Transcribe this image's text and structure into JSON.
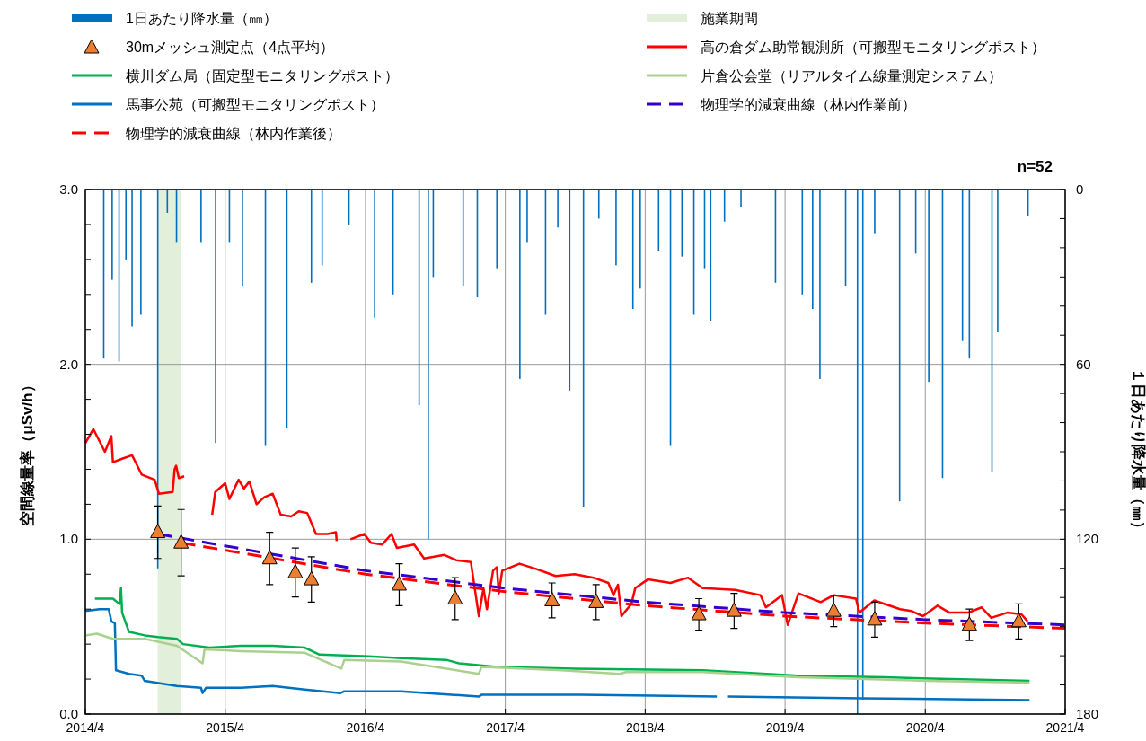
{
  "chart_data": {
    "type": "line",
    "xlim": [
      "2014-04",
      "2021-04"
    ],
    "xticks": [
      {
        "value": "2014-04",
        "label": "2014/4"
      },
      {
        "value": "2015-04",
        "label": "2015/4"
      },
      {
        "value": "2016-04",
        "label": "2016/4"
      },
      {
        "value": "2017-04",
        "label": "2017/4"
      },
      {
        "value": "2018-04",
        "label": "2018/4"
      },
      {
        "value": "2019-04",
        "label": "2019/4"
      },
      {
        "value": "2020-04",
        "label": "2020/4"
      },
      {
        "value": "2021-04",
        "label": "2021/4"
      }
    ],
    "ylim": [
      0,
      3
    ],
    "yticks": [
      {
        "value": 0,
        "label": "0.0"
      },
      {
        "value": 0.2,
        "label": null
      },
      {
        "value": 0.4,
        "label": null
      },
      {
        "value": 0.6,
        "label": null
      },
      {
        "value": 0.8,
        "label": null
      },
      {
        "value": 1,
        "label": "1.0"
      },
      {
        "value": 1.2,
        "label": null
      },
      {
        "value": 1.4,
        "label": null
      },
      {
        "value": 1.6,
        "label": null
      },
      {
        "value": 1.8,
        "label": null
      },
      {
        "value": 2,
        "label": "2.0"
      },
      {
        "value": 2.2,
        "label": null
      },
      {
        "value": 2.4,
        "label": null
      },
      {
        "value": 2.6,
        "label": null
      },
      {
        "value": 2.8,
        "label": null
      },
      {
        "value": 3,
        "label": "3.0"
      }
    ],
    "y2lim": [
      180,
      0
    ],
    "y2ticks": [
      0,
      {
        "value": 10,
        "label": null
      },
      {
        "value": 20,
        "label": null
      },
      {
        "value": 30,
        "label": null
      },
      {
        "value": 40,
        "label": null
      },
      {
        "value": 50,
        "label": null
      },
      60,
      {
        "value": 70,
        "label": null
      },
      {
        "value": 80,
        "label": null
      },
      {
        "value": 90,
        "label": null
      },
      {
        "value": 100,
        "label": null
      },
      {
        "value": 110,
        "label": null
      },
      120,
      {
        "value": 130,
        "label": null
      },
      {
        "value": 140,
        "label": null
      },
      {
        "value": 150,
        "label": null
      },
      {
        "value": 160,
        "label": null
      },
      {
        "value": 170,
        "label": null
      },
      180
    ],
    "ylabel": "空間線量率（μSv/h）",
    "y2label": "１日あたり降水量（㎜）",
    "grid": true,
    "legend": "top",
    "annotations": [
      "n=52"
    ],
    "bands": [
      {
        "axis": "x",
        "from": "2014-10-07",
        "to": "2014-12-07",
        "label": "施業期間",
        "color": "#e2efda"
      }
    ],
    "series": [
      {
        "name": "1日あたり降水量（㎜）",
        "type": "bar",
        "axis": "y2",
        "color": "#0070c0",
        "x": [
          "2014-05-19",
          "2014-06-10",
          "2014-06-28",
          "2014-07-16",
          "2014-08-01",
          "2014-08-24",
          "2014-10-07",
          "2014-11-01",
          "2014-11-25",
          "2015-01-28",
          "2015-03-07",
          "2015-04-12",
          "2015-05-16",
          "2015-07-15",
          "2015-09-09",
          "2015-11-12",
          "2015-12-10",
          "2016-02-18",
          "2016-04-25",
          "2016-06-12",
          "2016-08-19",
          "2016-09-12",
          "2016-09-25",
          "2016-12-12",
          "2017-01-18",
          "2017-03-10",
          "2017-05-09",
          "2017-05-28",
          "2017-07-15",
          "2017-08-16",
          "2017-09-16",
          "2017-10-22",
          "2017-12-01",
          "2018-01-15",
          "2018-02-28",
          "2018-03-19",
          "2018-05-06",
          "2018-06-06",
          "2018-07-06",
          "2018-08-06",
          "2018-09-03",
          "2018-09-19",
          "2018-10-25",
          "2018-12-07",
          "2019-03-07",
          "2019-05-16",
          "2019-06-12",
          "2019-07-01",
          "2019-09-06",
          "2019-10-07",
          "2019-10-21",
          "2019-11-21",
          "2020-01-25",
          "2020-03-07",
          "2020-04-10",
          "2020-05-16",
          "2020-07-07",
          "2020-07-25",
          "2020-09-22",
          "2020-10-07",
          "2020-12-25"
        ],
        "values": [
          58,
          31,
          59,
          24,
          47,
          43,
          130,
          8,
          18,
          18,
          87,
          18,
          33,
          88,
          82,
          32,
          26,
          12,
          44,
          36,
          74,
          120,
          30,
          33,
          37,
          27,
          65,
          18,
          43,
          13,
          69,
          109,
          10,
          26,
          41,
          34,
          21,
          88,
          23,
          43,
          27,
          45,
          11,
          6,
          32,
          36,
          41,
          65,
          33,
          180,
          175,
          15,
          107,
          22,
          66,
          99,
          52,
          58,
          97,
          49,
          9
        ]
      },
      {
        "name": "30mメッシュ測定点（4点平均）",
        "type": "scatter",
        "marker": "triangle",
        "color": "#ed7d31",
        "x": [
          "2014-10-07",
          "2014-12-07",
          "2015-07-26",
          "2015-10-01",
          "2015-11-12",
          "2016-06-28",
          "2016-11-21",
          "2017-08-01",
          "2017-11-24",
          "2018-08-19",
          "2018-11-19",
          "2019-08-06",
          "2019-11-21",
          "2020-07-25",
          "2020-12-01"
        ],
        "values": [
          1.04,
          0.98,
          0.89,
          0.81,
          0.77,
          0.74,
          0.66,
          0.65,
          0.64,
          0.57,
          0.59,
          0.59,
          0.54,
          0.51,
          0.53
        ],
        "errors": [
          0.15,
          0.19,
          0.15,
          0.14,
          0.13,
          0.12,
          0.12,
          0.1,
          0.1,
          0.09,
          0.1,
          0.09,
          0.1,
          0.09,
          0.1
        ]
      },
      {
        "name": "横川ダム局（固定型モニタリングポスト）",
        "color": "#00b050",
        "x": [
          "2014-04-26",
          "2014-06-12",
          "2014-06-29",
          "2014-07-03",
          "2014-07-06",
          "2014-07-24",
          "2014-09-03",
          "2014-10-08",
          "2014-11-26",
          "2014-12-12",
          "2015-02-19",
          "2015-05-12",
          "2015-08-03",
          "2015-10-26",
          "2015-12-03",
          "2016-04-10",
          "2016-07-03",
          "2016-10-29",
          "2016-12-01",
          "2017-03-10",
          "2017-09-29",
          "2018-08-29",
          "2019-05-06",
          "2019-12-15",
          "2020-12-29"
        ],
        "values": [
          0.66,
          0.66,
          0.63,
          0.72,
          0.58,
          0.47,
          0.45,
          0.44,
          0.43,
          0.4,
          0.38,
          0.39,
          0.39,
          0.38,
          0.34,
          0.33,
          0.32,
          0.31,
          0.29,
          0.27,
          0.26,
          0.25,
          0.22,
          0.21,
          0.19
        ]
      },
      {
        "name": "馬事公苑（可搬型モニタリングポスト）",
        "color": "#0070c0",
        "x": [
          "2014-04-01",
          "2014-05-08",
          "2014-06-01",
          "2014-06-08",
          "2014-06-17",
          "2014-06-20",
          "2014-07-24",
          "2014-08-26",
          "2014-09-03",
          "2014-11-26",
          "2015-01-28",
          "2015-02-01",
          "2015-02-10",
          "2015-05-12",
          "2015-08-03",
          "2015-10-26",
          "2016-01-27",
          "2016-02-06",
          "2016-07-03",
          "2017-01-22",
          "2017-01-29",
          "2017-10-15",
          "2018-10-05",
          "2018-10-12",
          "2018-11-03",
          "2019-10-19",
          "2020-12-29"
        ],
        "values": [
          0.59,
          0.6,
          0.6,
          0.53,
          0.52,
          0.25,
          0.23,
          0.22,
          0.19,
          0.16,
          0.15,
          0.12,
          0.15,
          0.15,
          0.16,
          0.14,
          0.12,
          0.13,
          0.13,
          0.1,
          0.11,
          0.11,
          0.1,
          null,
          0.1,
          0.09,
          0.08
        ]
      },
      {
        "name": "物理学的減衰曲線（林内作業後）",
        "line_style": "dashed",
        "color": "#ff0000",
        "x": [
          "2014-12-07",
          "2016-04",
          "2017-04",
          "2018-04",
          "2019-04",
          "2020-04",
          "2021-04"
        ],
        "values": [
          0.98,
          0.8,
          0.7,
          0.62,
          0.56,
          0.52,
          0.49
        ]
      },
      {
        "name": "高の倉ダム助常観測所（可搬型モニタリングポスト）",
        "color": "#ff0000",
        "x": [
          "2014-04-01",
          "2014-04-22",
          "2014-05-22",
          "2014-06-08",
          "2014-06-12",
          "2014-07-06",
          "2014-08-01",
          "2014-08-26",
          "2014-09-29",
          "2014-10-10",
          "2014-11-15",
          "2014-11-20",
          "2014-11-24",
          "2014-12-01",
          "2014-12-15",
          "2015-01-15",
          "2015-02-26",
          "2015-03-06",
          "2015-04-01",
          "2015-04-12",
          "2015-05-06",
          "2015-05-20",
          "2015-06-03",
          "2015-06-22",
          "2015-07-12",
          "2015-08-03",
          "2015-08-24",
          "2015-09-20",
          "2015-10-10",
          "2015-11-01",
          "2015-11-24",
          "2015-12-24",
          "2016-01-15",
          "2016-01-17",
          "2016-02-01",
          "2016-02-22",
          "2016-03-29",
          "2016-04-15",
          "2016-05-15",
          "2016-06-08",
          "2016-06-22",
          "2016-08-06",
          "2016-09-01",
          "2016-10-24",
          "2016-11-24",
          "2017-01-01",
          "2017-01-22",
          "2017-02-03",
          "2017-02-12",
          "2017-02-28",
          "2017-03-10",
          "2017-03-15",
          "2017-03-24",
          "2017-05-08",
          "2017-06-20",
          "2017-08-10",
          "2017-09-29",
          "2017-11-17",
          "2017-12-26",
          "2018-01-08",
          "2018-01-20",
          "2018-01-29",
          "2018-02-24",
          "2018-03-06",
          "2018-04-08",
          "2018-06-06",
          "2018-07-22",
          "2018-08-29",
          "2018-11-22",
          "2019-01-27",
          "2019-02-10",
          "2019-03-24",
          "2019-04-08",
          "2019-05-06",
          "2019-07-03",
          "2019-08-06",
          "2019-10-03",
          "2019-10-12",
          "2019-11-20",
          "2020-01-26",
          "2020-02-24",
          "2020-03-26",
          "2020-05-03",
          "2020-06-03",
          "2020-07-22",
          "2020-08-26",
          "2020-09-20",
          "2020-11-01",
          "2020-12-08",
          "2020-12-24"
        ],
        "values": [
          1.55,
          1.63,
          1.5,
          1.59,
          1.44,
          1.46,
          1.48,
          1.37,
          1.34,
          1.26,
          1.27,
          1.4,
          1.42,
          1.35,
          1.36,
          null,
          1.14,
          1.27,
          1.32,
          1.23,
          1.34,
          1.29,
          1.33,
          1.2,
          1.24,
          1.26,
          1.14,
          1.13,
          1.16,
          1.15,
          1.03,
          1.03,
          1.04,
          0.99,
          null,
          1.0,
          1.03,
          0.98,
          0.97,
          1.03,
          0.95,
          0.97,
          0.89,
          0.91,
          0.88,
          0.87,
          0.56,
          0.72,
          0.6,
          0.82,
          0.84,
          0.69,
          0.82,
          0.86,
          0.83,
          0.79,
          0.8,
          0.78,
          0.75,
          0.68,
          0.74,
          0.56,
          0.63,
          0.72,
          0.77,
          0.75,
          0.78,
          0.72,
          0.71,
          0.68,
          0.61,
          0.68,
          0.51,
          0.69,
          0.64,
          0.68,
          0.66,
          0.58,
          0.65,
          0.6,
          0.59,
          0.56,
          0.62,
          0.58,
          0.58,
          0.61,
          0.55,
          0.58,
          0.57,
          0.53
        ]
      },
      {
        "name": "片倉公会堂（リアルタイム線量測定システム）",
        "color": "#a9d18e",
        "x": [
          "2014-04-01",
          "2014-05-01",
          "2014-06-12",
          "2014-09-03",
          "2014-11-26",
          "2015-02-01",
          "2015-02-06",
          "2015-05-12",
          "2015-10-26",
          "2016-01-29",
          "2016-02-06",
          "2016-07-03",
          "2017-01-22",
          "2017-01-29",
          "2017-08-26",
          "2018-01-24",
          "2018-02-10",
          "2018-08-29",
          "2019-05-06",
          "2020-04-06",
          "2020-12-29"
        ],
        "values": [
          0.45,
          0.46,
          0.43,
          0.43,
          0.39,
          0.29,
          0.37,
          0.36,
          0.35,
          0.26,
          0.31,
          0.3,
          0.23,
          0.27,
          0.25,
          0.23,
          0.24,
          0.24,
          0.21,
          0.19,
          0.18
        ]
      },
      {
        "name": "物理学的減衰曲線（林内作業前）",
        "line_style": "dashed",
        "color": "#3300cc",
        "x": [
          "2014-10-07",
          "2016-04",
          "2017-04",
          "2018-04",
          "2019-04",
          "2020-04",
          "2021-04"
        ],
        "values": [
          1.03,
          0.82,
          0.72,
          0.64,
          0.58,
          0.54,
          0.51
        ]
      }
    ]
  }
}
